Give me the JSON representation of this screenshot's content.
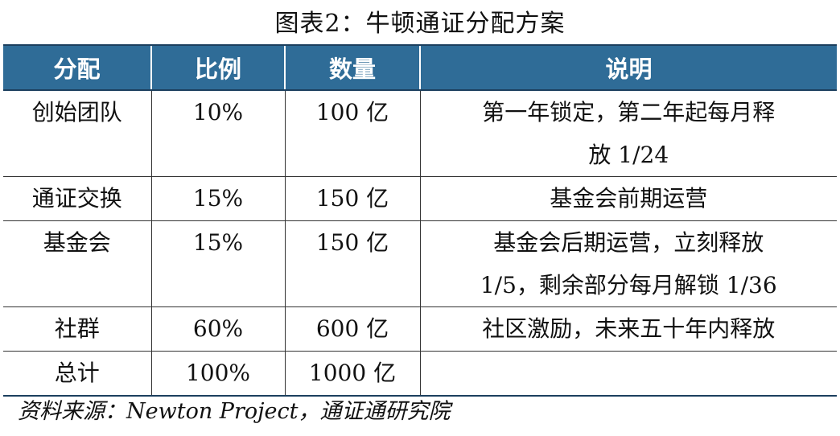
{
  "title": "图表2：牛顿通证分配方案",
  "table": {
    "headers": [
      "分配",
      "比例",
      "数量",
      "说明"
    ],
    "rows": [
      {
        "name": "创始团队",
        "ratio": "10%",
        "amount": "100 亿",
        "desc": [
          "第一年锁定，第二年起每月释",
          "放 1/24"
        ]
      },
      {
        "name": "通证交换",
        "ratio": "15%",
        "amount": "150 亿",
        "desc": [
          "基金会前期运营"
        ]
      },
      {
        "name": "基金会",
        "ratio": "15%",
        "amount": "150 亿",
        "desc": [
          "基金会后期运营，立刻释放",
          "1/5，剩余部分每月解锁 1/36"
        ]
      },
      {
        "name": "社群",
        "ratio": "60%",
        "amount": "600 亿",
        "desc": [
          "社区激励，未来五十年内释放"
        ]
      },
      {
        "name": "总计",
        "ratio": "100%",
        "amount": "1000 亿",
        "desc": [
          ""
        ]
      }
    ]
  },
  "source": "资料来源：Newton Project，通证通研究院"
}
